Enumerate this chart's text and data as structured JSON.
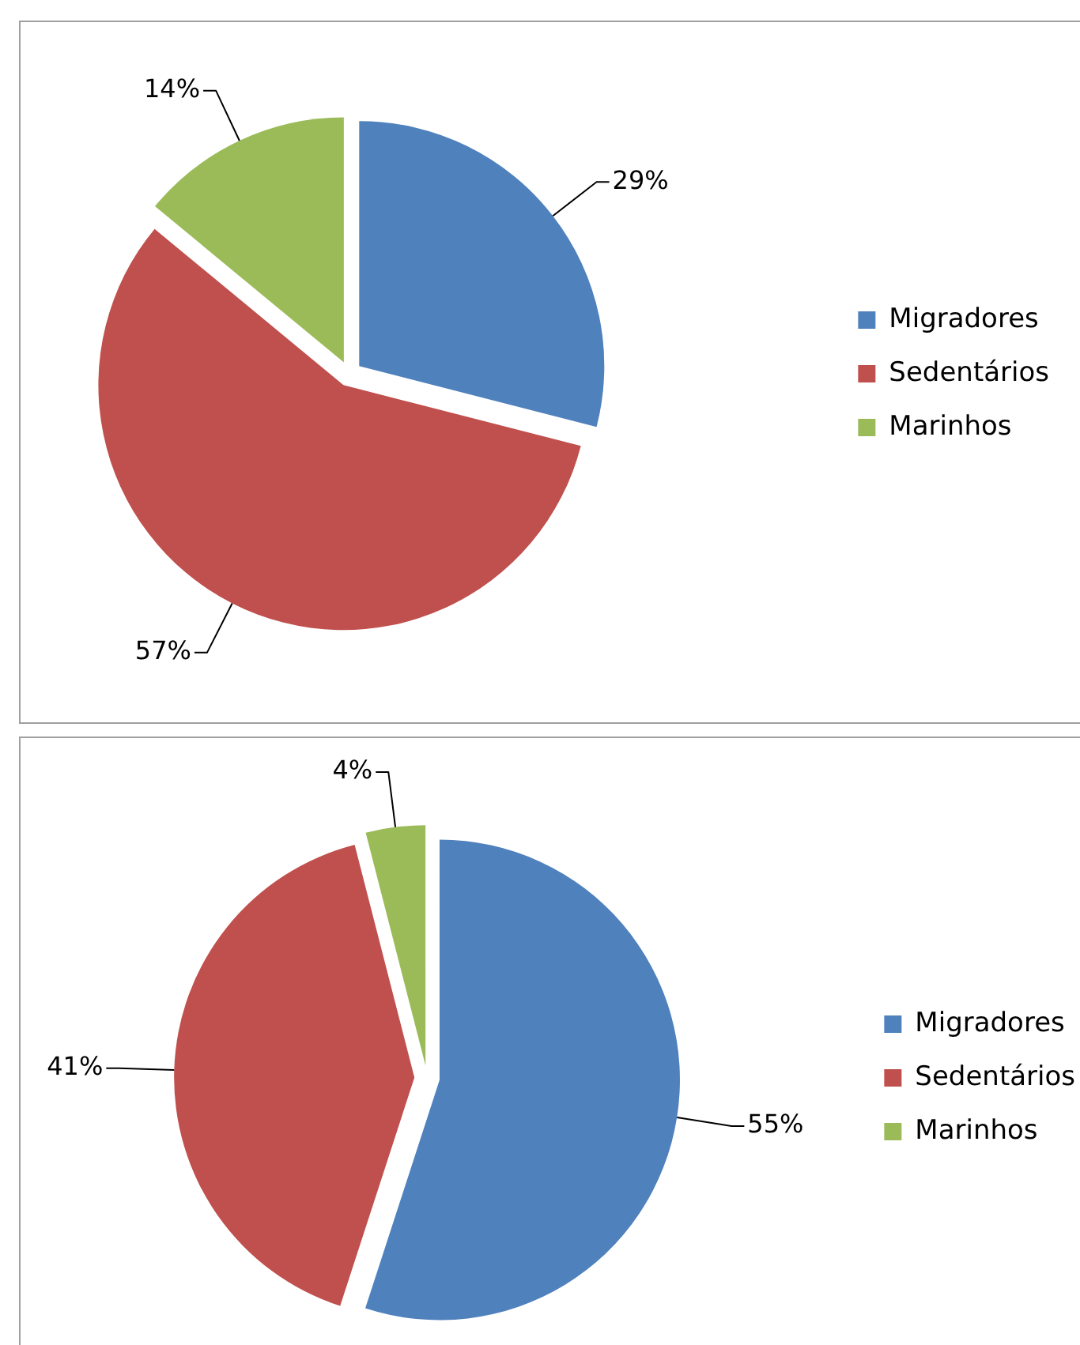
{
  "chart_data": [
    {
      "type": "pie",
      "categories": [
        "Migradores",
        "Sedentários",
        "Marinhos"
      ],
      "values": [
        29,
        57,
        14
      ],
      "colors": [
        "#4f81bd",
        "#c0504d",
        "#9bbb59"
      ],
      "value_labels": [
        "29%",
        "57%",
        "14%"
      ],
      "legend": "right"
    },
    {
      "type": "pie",
      "categories": [
        "Migradores",
        "Sedentários",
        "Marinhos"
      ],
      "values": [
        55,
        41,
        4
      ],
      "colors": [
        "#4f81bd",
        "#c0504d",
        "#9bbb59"
      ],
      "value_labels": [
        "55%",
        "41%",
        "4%"
      ],
      "legend": "right"
    }
  ]
}
